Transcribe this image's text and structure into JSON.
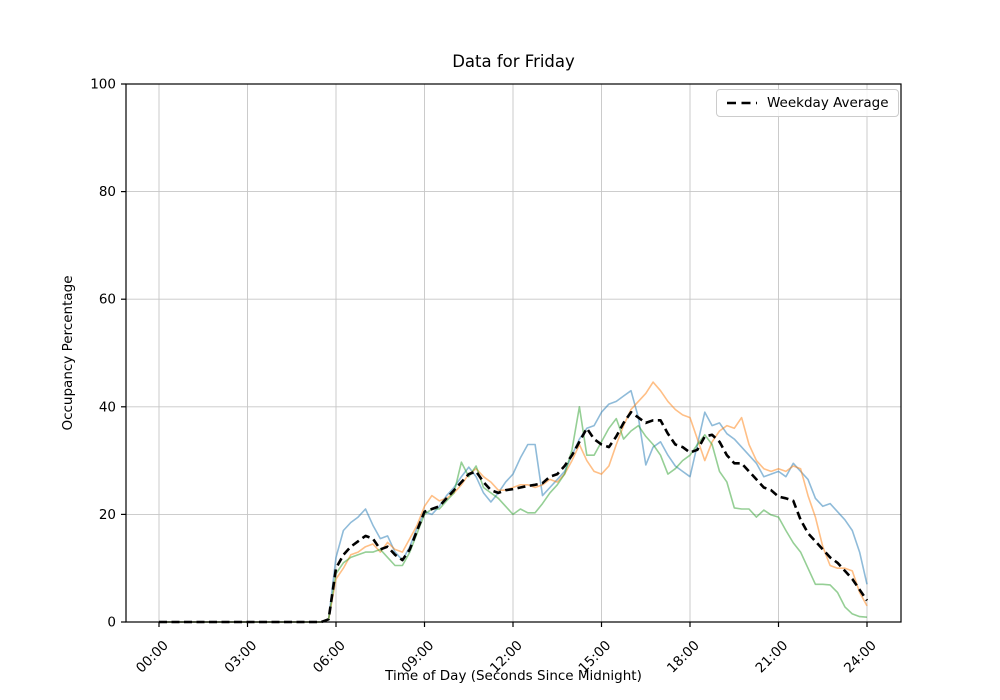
{
  "chart_data": {
    "type": "line",
    "title": "Data for Friday",
    "xlabel": "Time of Day (Seconds Since Midnight)",
    "ylabel": "Occupancy Percentage",
    "ylim": [
      0,
      100
    ],
    "xlim_hours": [
      0,
      24
    ],
    "grid": true,
    "grid_color": "#c6c6c6",
    "spine_color": "#000000",
    "legend_position": "upper right",
    "y_ticks": [
      0,
      20,
      40,
      60,
      80,
      100
    ],
    "x_tick_hours": [
      0,
      3,
      6,
      9,
      12,
      15,
      18,
      21,
      24
    ],
    "x_tick_labels": [
      "00:00",
      "03:00",
      "06:00",
      "09:00",
      "12:00",
      "15:00",
      "18:00",
      "21:00",
      "24:00"
    ],
    "x_start_hour": 0,
    "x_step_minutes": 15,
    "series": [
      {
        "id": "friday-week-1",
        "color": "#1f77b4",
        "alpha": 0.5,
        "width": 1.6,
        "in_legend": false,
        "values": [
          0,
          0,
          0,
          0,
          0,
          0,
          0,
          0,
          0,
          0,
          0,
          0,
          0,
          0,
          0,
          0,
          0,
          0,
          0,
          0,
          0,
          0,
          0,
          0.5,
          12,
          17,
          18.5,
          19.5,
          21,
          18,
          15.5,
          16,
          13,
          11.5,
          14,
          17.5,
          20.5,
          20,
          21.5,
          23.5,
          25,
          27,
          28.8,
          27,
          24,
          22.3,
          24,
          26,
          27.5,
          30.5,
          33,
          33,
          23.5,
          25,
          26.5,
          28,
          31,
          34,
          36,
          36.5,
          39,
          40.5,
          41,
          42,
          43,
          38,
          29.2,
          32.5,
          33.5,
          31,
          29,
          28,
          27,
          33,
          39,
          36.5,
          37,
          35,
          34,
          32.5,
          31,
          29.5,
          27,
          27.5,
          28,
          27,
          29.5,
          28,
          26.5,
          23,
          21.5,
          22,
          20.5,
          19,
          17,
          13,
          7
        ]
      },
      {
        "id": "friday-week-2",
        "color": "#ff7f0e",
        "alpha": 0.5,
        "width": 1.6,
        "in_legend": false,
        "values": [
          0,
          0,
          0,
          0,
          0,
          0,
          0,
          0,
          0,
          0,
          0,
          0,
          0,
          0,
          0,
          0,
          0,
          0,
          0,
          0,
          0,
          0,
          0,
          0.5,
          8,
          10,
          12.5,
          13,
          14,
          14.5,
          13,
          14.8,
          13.5,
          13,
          15.5,
          18,
          21.5,
          23.5,
          22.5,
          23,
          24,
          25.5,
          27.5,
          28.5,
          27,
          26,
          24.5,
          24.5,
          25,
          25.5,
          25.5,
          25,
          25.5,
          26.5,
          26,
          27.5,
          30,
          33,
          30,
          28,
          27.5,
          29,
          33,
          36.5,
          39.5,
          41,
          42.5,
          44.6,
          43,
          41,
          39.5,
          38.5,
          38,
          34,
          30,
          33.5,
          35.5,
          36.5,
          36,
          38,
          33,
          30,
          28.5,
          28,
          28.5,
          28,
          29,
          28.5,
          23.5,
          19.5,
          14,
          10.5,
          10,
          10,
          9.5,
          5.5,
          3
        ]
      },
      {
        "id": "friday-week-3",
        "color": "#2ca02c",
        "alpha": 0.5,
        "width": 1.6,
        "in_legend": false,
        "values": [
          0,
          0,
          0,
          0,
          0,
          0,
          0,
          0,
          0,
          0,
          0,
          0,
          0,
          0,
          0,
          0,
          0,
          0,
          0,
          0,
          0,
          0,
          0,
          0.5,
          9,
          11,
          12,
          12.5,
          13,
          13,
          13.5,
          12,
          10.5,
          10.5,
          13,
          16.5,
          20,
          21,
          21,
          22.5,
          24,
          29.7,
          27,
          29,
          25,
          24,
          23,
          21.5,
          20,
          21,
          20.3,
          20.3,
          22,
          24,
          25.5,
          27.5,
          32,
          40,
          31,
          31,
          33.5,
          36,
          37.8,
          34,
          35.5,
          36.5,
          34.5,
          33,
          31,
          27.5,
          28.5,
          30,
          31,
          33,
          34.8,
          33,
          28,
          26,
          21.2,
          21,
          21,
          19.5,
          20.8,
          19.9,
          19.5,
          17,
          14.7,
          13,
          10,
          7,
          7,
          6.9,
          5.5,
          2.8,
          1.5,
          1,
          0.9
        ]
      },
      {
        "id": "weekday-average",
        "name": "Weekday Average",
        "color": "#000000",
        "alpha": 1,
        "width": 2.6,
        "dash": "8 4.5",
        "in_legend": true,
        "values": [
          0,
          0,
          0,
          0,
          0,
          0,
          0,
          0,
          0,
          0,
          0,
          0,
          0,
          0,
          0,
          0,
          0,
          0,
          0,
          0,
          0,
          0,
          0,
          0.5,
          10,
          12.5,
          14,
          15,
          16,
          15.5,
          13.5,
          14,
          12.5,
          11.5,
          13.5,
          17,
          20.5,
          21,
          21.5,
          23,
          24.5,
          26,
          27.5,
          28,
          26,
          24.5,
          24,
          24.5,
          24.7,
          25,
          25.3,
          25.5,
          25.8,
          27,
          27.5,
          29,
          31,
          33.5,
          36,
          34,
          33,
          32.5,
          34.5,
          37,
          39,
          38,
          37,
          37.5,
          37.5,
          35,
          33,
          32.5,
          31.5,
          32,
          34.5,
          34.8,
          33.5,
          31,
          29.5,
          29.5,
          28,
          26.5,
          25,
          24.5,
          23.3,
          23,
          22.5,
          19,
          16.5,
          15,
          13.5,
          12,
          11,
          9.5,
          8,
          6,
          4
        ]
      }
    ]
  }
}
